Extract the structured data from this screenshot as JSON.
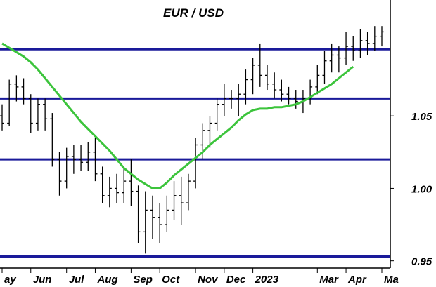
{
  "chart_data": {
    "type": "line",
    "title": "EUR / USD",
    "y_ticks": [
      "1.05",
      "1.00",
      "0.95"
    ],
    "y_tick_values": [
      1.05,
      1.0,
      0.95
    ],
    "x_ticks": [
      "ay",
      "Jun",
      "Jul",
      "Aug",
      "Sep",
      "Oct",
      "Nov",
      "Dec",
      "2023",
      "Mar",
      "Apr",
      "Ma"
    ],
    "x_tick_index": [
      0,
      4,
      9,
      13,
      18,
      22,
      27,
      31,
      35,
      44,
      48,
      53
    ],
    "ylim": [
      0.945,
      1.13
    ],
    "weeks": 54,
    "horizontal_levels": [
      1.096,
      1.062,
      1.02,
      0.953
    ],
    "series": [
      {
        "type": "ohlc",
        "values": [
          [
            1.05,
            1.058,
            1.04,
            1.045
          ],
          [
            1.045,
            1.075,
            1.043,
            1.072
          ],
          [
            1.072,
            1.078,
            1.06,
            1.07
          ],
          [
            1.07,
            1.076,
            1.058,
            1.062
          ],
          [
            1.062,
            1.065,
            1.038,
            1.045
          ],
          [
            1.045,
            1.062,
            1.04,
            1.058
          ],
          [
            1.058,
            1.062,
            1.04,
            1.048
          ],
          [
            1.048,
            1.052,
            1.015,
            1.02
          ],
          [
            1.02,
            1.025,
            0.995,
            1.005
          ],
          [
            1.005,
            1.028,
            1.0,
            1.022
          ],
          [
            1.022,
            1.03,
            1.01,
            1.02
          ],
          [
            1.02,
            1.03,
            1.012,
            1.018
          ],
          [
            1.018,
            1.032,
            1.012,
            1.025
          ],
          [
            1.025,
            1.035,
            1.005,
            1.01
          ],
          [
            1.01,
            1.015,
            0.99,
            0.995
          ],
          [
            0.995,
            1.008,
            0.987,
            1.0
          ],
          [
            1.0,
            1.01,
            0.99,
            0.997
          ],
          [
            0.997,
            1.015,
            0.99,
            1.005
          ],
          [
            1.005,
            1.02,
            0.988,
            0.998
          ],
          [
            0.998,
            1.002,
            0.962,
            0.97
          ],
          [
            0.97,
            0.998,
            0.955,
            0.985
          ],
          [
            0.985,
            0.995,
            0.965,
            0.98
          ],
          [
            0.98,
            0.99,
            0.962,
            0.975
          ],
          [
            0.975,
            0.995,
            0.97,
            0.985
          ],
          [
            0.985,
            1.005,
            0.978,
            0.995
          ],
          [
            0.995,
            1.008,
            0.975,
            0.99
          ],
          [
            0.99,
            1.01,
            0.985,
            1.005
          ],
          [
            1.005,
            1.035,
            1.0,
            1.03
          ],
          [
            1.03,
            1.045,
            1.02,
            1.04
          ],
          [
            1.04,
            1.05,
            1.028,
            1.045
          ],
          [
            1.045,
            1.062,
            1.04,
            1.058
          ],
          [
            1.058,
            1.072,
            1.05,
            1.062
          ],
          [
            1.062,
            1.068,
            1.055,
            1.062
          ],
          [
            1.062,
            1.072,
            1.05,
            1.065
          ],
          [
            1.065,
            1.082,
            1.058,
            1.075
          ],
          [
            1.075,
            1.09,
            1.065,
            1.085
          ],
          [
            1.085,
            1.1,
            1.07,
            1.078
          ],
          [
            1.078,
            1.085,
            1.068,
            1.072
          ],
          [
            1.072,
            1.08,
            1.062,
            1.068
          ],
          [
            1.068,
            1.075,
            1.06,
            1.065
          ],
          [
            1.065,
            1.07,
            1.058,
            1.062
          ],
          [
            1.062,
            1.068,
            1.055,
            1.06
          ],
          [
            1.06,
            1.068,
            1.052,
            1.062
          ],
          [
            1.062,
            1.075,
            1.058,
            1.07
          ],
          [
            1.07,
            1.085,
            1.065,
            1.078
          ],
          [
            1.078,
            1.095,
            1.072,
            1.088
          ],
          [
            1.088,
            1.1,
            1.08,
            1.092
          ],
          [
            1.092,
            1.098,
            1.08,
            1.09
          ],
          [
            1.09,
            1.108,
            1.085,
            1.098
          ],
          [
            1.098,
            1.105,
            1.088,
            1.095
          ],
          [
            1.095,
            1.11,
            1.09,
            1.102
          ],
          [
            1.102,
            1.108,
            1.092,
            1.1
          ],
          [
            1.1,
            1.112,
            1.095,
            1.105
          ],
          [
            1.105,
            1.112,
            1.098,
            1.108
          ]
        ]
      },
      {
        "type": "line",
        "color": "#3cc43c",
        "values": [
          1.1,
          1.097,
          1.094,
          1.091,
          1.087,
          1.082,
          1.076,
          1.07,
          1.064,
          1.058,
          1.052,
          1.046,
          1.041,
          1.036,
          1.031,
          1.026,
          1.02,
          1.014,
          1.01,
          1.006,
          1.003,
          1.0,
          1.0,
          1.004,
          1.009,
          1.013,
          1.017,
          1.021,
          1.025,
          1.03,
          1.034,
          1.038,
          1.042,
          1.047,
          1.051,
          1.054,
          1.055,
          1.055,
          1.056,
          1.056,
          1.057,
          1.058,
          1.06,
          1.063,
          1.066,
          1.069,
          1.072,
          1.076,
          1.08,
          1.084
        ]
      }
    ],
    "colors": {
      "levels": "#1a1a9a",
      "ma": "#3cc43c",
      "bars": "#000000"
    },
    "grid": false
  }
}
